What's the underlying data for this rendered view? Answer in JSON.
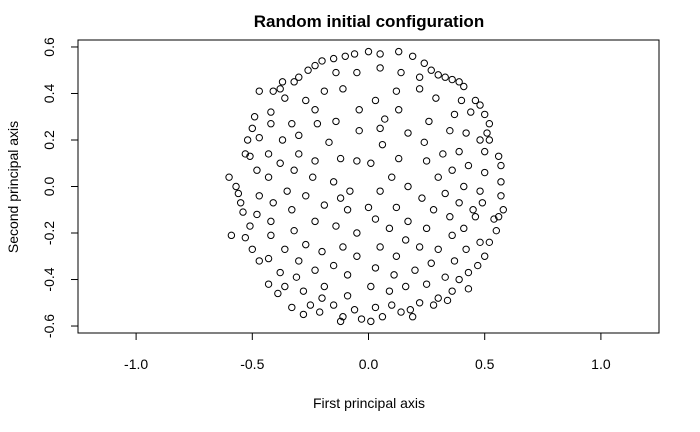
{
  "chart_data": {
    "type": "scatter",
    "title": "Random initial configuration",
    "xlabel": "First principal axis",
    "ylabel": "Second principal axis",
    "xlim": [
      -1.25,
      1.25
    ],
    "ylim": [
      -0.63,
      0.63
    ],
    "xticks": [
      -1.0,
      -0.5,
      0.0,
      0.5,
      1.0
    ],
    "xtick_labels": [
      "-1.0",
      "-0.5",
      "0.0",
      "0.5",
      "1.0"
    ],
    "yticks": [
      -0.6,
      -0.4,
      -0.2,
      0.0,
      0.2,
      0.4,
      0.6
    ],
    "ytick_labels": [
      "-0.6",
      "-0.4",
      "-0.2",
      "0.0",
      "0.2",
      "0.4",
      "0.6"
    ],
    "grid": false,
    "marker": "open-circle",
    "points": [
      [
        0.0,
        0.58
      ],
      [
        0.13,
        0.58
      ],
      [
        -0.06,
        0.57
      ],
      [
        0.05,
        0.57
      ],
      [
        -0.1,
        0.56
      ],
      [
        0.19,
        0.56
      ],
      [
        -0.15,
        0.55
      ],
      [
        0.24,
        0.53
      ],
      [
        -0.2,
        0.54
      ],
      [
        -0.23,
        0.52
      ],
      [
        0.27,
        0.5
      ],
      [
        -0.26,
        0.5
      ],
      [
        0.3,
        0.48
      ],
      [
        -0.3,
        0.47
      ],
      [
        0.33,
        0.47
      ],
      [
        0.36,
        0.46
      ],
      [
        -0.37,
        0.45
      ],
      [
        0.39,
        0.45
      ],
      [
        -0.41,
        0.41
      ],
      [
        -0.47,
        0.41
      ],
      [
        0.41,
        0.43
      ],
      [
        0.14,
        0.49
      ],
      [
        -0.14,
        0.49
      ],
      [
        -0.05,
        0.49
      ],
      [
        0.05,
        0.51
      ],
      [
        0.22,
        0.47
      ],
      [
        -0.32,
        0.45
      ],
      [
        -0.38,
        0.42
      ],
      [
        0.4,
        0.37
      ],
      [
        0.46,
        0.37
      ],
      [
        0.48,
        0.35
      ],
      [
        -0.36,
        0.38
      ],
      [
        -0.11,
        0.42
      ],
      [
        0.22,
        0.42
      ],
      [
        0.12,
        0.41
      ],
      [
        -0.19,
        0.41
      ],
      [
        0.03,
        0.37
      ],
      [
        0.29,
        0.38
      ],
      [
        -0.27,
        0.37
      ],
      [
        -0.49,
        0.3
      ],
      [
        -0.42,
        0.32
      ],
      [
        -0.5,
        0.25
      ],
      [
        0.44,
        0.32
      ],
      [
        0.5,
        0.31
      ],
      [
        0.52,
        0.27
      ],
      [
        -0.04,
        0.33
      ],
      [
        0.13,
        0.33
      ],
      [
        -0.23,
        0.33
      ],
      [
        0.37,
        0.31
      ],
      [
        -0.42,
        0.27
      ],
      [
        -0.33,
        0.27
      ],
      [
        0.26,
        0.28
      ],
      [
        0.51,
        0.23
      ],
      [
        -0.14,
        0.28
      ],
      [
        0.07,
        0.29
      ],
      [
        -0.52,
        0.2
      ],
      [
        0.05,
        0.25
      ],
      [
        -0.22,
        0.27
      ],
      [
        0.52,
        0.2
      ],
      [
        -0.04,
        0.24
      ],
      [
        0.35,
        0.24
      ],
      [
        -0.47,
        0.21
      ],
      [
        0.17,
        0.23
      ],
      [
        -0.3,
        0.22
      ],
      [
        0.42,
        0.23
      ],
      [
        -0.37,
        0.2
      ],
      [
        -0.17,
        0.19
      ],
      [
        0.24,
        0.19
      ],
      [
        0.48,
        0.2
      ],
      [
        -0.53,
        0.14
      ],
      [
        0.06,
        0.18
      ],
      [
        -0.3,
        0.14
      ],
      [
        -0.43,
        0.14
      ],
      [
        0.32,
        0.14
      ],
      [
        0.39,
        0.15
      ],
      [
        0.56,
        0.13
      ],
      [
        -0.51,
        0.13
      ],
      [
        -0.12,
        0.12
      ],
      [
        0.13,
        0.12
      ],
      [
        -0.23,
        0.11
      ],
      [
        0.5,
        0.15
      ],
      [
        0.25,
        0.11
      ],
      [
        0.57,
        0.09
      ],
      [
        -0.05,
        0.11
      ],
      [
        0.43,
        0.09
      ],
      [
        -0.38,
        0.1
      ],
      [
        0.01,
        0.1
      ],
      [
        -0.48,
        0.07
      ],
      [
        -0.32,
        0.07
      ],
      [
        0.36,
        0.07
      ],
      [
        -0.6,
        0.04
      ],
      [
        0.5,
        0.06
      ],
      [
        -0.24,
        0.04
      ],
      [
        -0.43,
        0.04
      ],
      [
        0.1,
        0.04
      ],
      [
        0.3,
        0.04
      ],
      [
        0.57,
        0.02
      ],
      [
        -0.15,
        0.02
      ],
      [
        -0.57,
        0.0
      ],
      [
        -0.08,
        -0.02
      ],
      [
        0.17,
        0.0
      ],
      [
        -0.35,
        -0.02
      ],
      [
        0.41,
        0.0
      ],
      [
        -0.56,
        -0.03
      ],
      [
        0.48,
        -0.02
      ],
      [
        0.57,
        -0.04
      ],
      [
        -0.47,
        -0.04
      ],
      [
        0.33,
        -0.03
      ],
      [
        0.05,
        -0.02
      ],
      [
        -0.27,
        -0.04
      ],
      [
        -0.12,
        -0.05
      ],
      [
        0.23,
        -0.05
      ],
      [
        0.49,
        -0.07
      ],
      [
        -0.41,
        -0.07
      ],
      [
        -0.55,
        -0.07
      ],
      [
        0.45,
        -0.1
      ],
      [
        0.39,
        -0.07
      ],
      [
        0.0,
        -0.09
      ],
      [
        -0.19,
        -0.08
      ],
      [
        -0.54,
        -0.11
      ],
      [
        0.58,
        -0.1
      ],
      [
        0.12,
        -0.09
      ],
      [
        -0.33,
        -0.1
      ],
      [
        0.28,
        -0.1
      ],
      [
        -0.48,
        -0.12
      ],
      [
        -0.09,
        -0.1
      ],
      [
        0.35,
        -0.13
      ],
      [
        0.56,
        -0.13
      ],
      [
        0.54,
        -0.14
      ],
      [
        -0.23,
        -0.15
      ],
      [
        0.17,
        -0.15
      ],
      [
        0.03,
        -0.14
      ],
      [
        -0.42,
        -0.15
      ],
      [
        0.46,
        -0.13
      ],
      [
        -0.51,
        -0.17
      ],
      [
        0.41,
        -0.18
      ],
      [
        -0.14,
        -0.17
      ],
      [
        -0.32,
        -0.19
      ],
      [
        0.09,
        -0.18
      ],
      [
        0.25,
        -0.18
      ],
      [
        0.55,
        -0.19
      ],
      [
        -0.05,
        -0.2
      ],
      [
        0.36,
        -0.21
      ],
      [
        -0.42,
        -0.21
      ],
      [
        -0.59,
        -0.21
      ],
      [
        -0.53,
        -0.22
      ],
      [
        0.16,
        -0.23
      ],
      [
        -0.27,
        -0.25
      ],
      [
        0.48,
        -0.24
      ],
      [
        0.52,
        -0.24
      ],
      [
        0.05,
        -0.26
      ],
      [
        -0.11,
        -0.26
      ],
      [
        0.3,
        -0.27
      ],
      [
        -0.2,
        -0.28
      ],
      [
        0.42,
        -0.27
      ],
      [
        -0.5,
        -0.27
      ],
      [
        0.22,
        -0.26
      ],
      [
        -0.36,
        -0.27
      ],
      [
        0.5,
        -0.3
      ],
      [
        -0.05,
        -0.3
      ],
      [
        0.12,
        -0.3
      ],
      [
        -0.43,
        -0.31
      ],
      [
        -0.3,
        -0.32
      ],
      [
        0.27,
        -0.33
      ],
      [
        -0.47,
        -0.32
      ],
      [
        0.37,
        -0.32
      ],
      [
        0.47,
        -0.34
      ],
      [
        -0.15,
        -0.34
      ],
      [
        0.03,
        -0.35
      ],
      [
        -0.23,
        -0.36
      ],
      [
        0.2,
        -0.36
      ],
      [
        -0.38,
        -0.37
      ],
      [
        0.43,
        -0.37
      ],
      [
        0.11,
        -0.38
      ],
      [
        -0.09,
        -0.38
      ],
      [
        0.33,
        -0.39
      ],
      [
        -0.31,
        -0.39
      ],
      [
        0.39,
        -0.4
      ],
      [
        -0.43,
        -0.42
      ],
      [
        0.25,
        -0.42
      ],
      [
        0.01,
        -0.43
      ],
      [
        0.16,
        -0.43
      ],
      [
        -0.19,
        -0.43
      ],
      [
        -0.36,
        -0.43
      ],
      [
        0.36,
        -0.45
      ],
      [
        0.43,
        -0.44
      ],
      [
        -0.28,
        -0.45
      ],
      [
        0.09,
        -0.45
      ],
      [
        -0.39,
        -0.46
      ],
      [
        -0.09,
        -0.47
      ],
      [
        0.3,
        -0.48
      ],
      [
        -0.2,
        -0.48
      ],
      [
        0.34,
        -0.49
      ],
      [
        0.22,
        -0.5
      ],
      [
        -0.15,
        -0.51
      ],
      [
        0.1,
        -0.51
      ],
      [
        -0.25,
        -0.51
      ],
      [
        0.28,
        -0.51
      ],
      [
        0.03,
        -0.52
      ],
      [
        -0.33,
        -0.52
      ],
      [
        0.18,
        -0.53
      ],
      [
        -0.06,
        -0.53
      ],
      [
        -0.21,
        -0.54
      ],
      [
        0.14,
        -0.54
      ],
      [
        -0.28,
        -0.55
      ],
      [
        0.06,
        -0.56
      ],
      [
        -0.11,
        -0.56
      ],
      [
        0.19,
        -0.56
      ],
      [
        -0.03,
        -0.57
      ],
      [
        -0.12,
        -0.58
      ],
      [
        0.01,
        -0.58
      ]
    ]
  }
}
